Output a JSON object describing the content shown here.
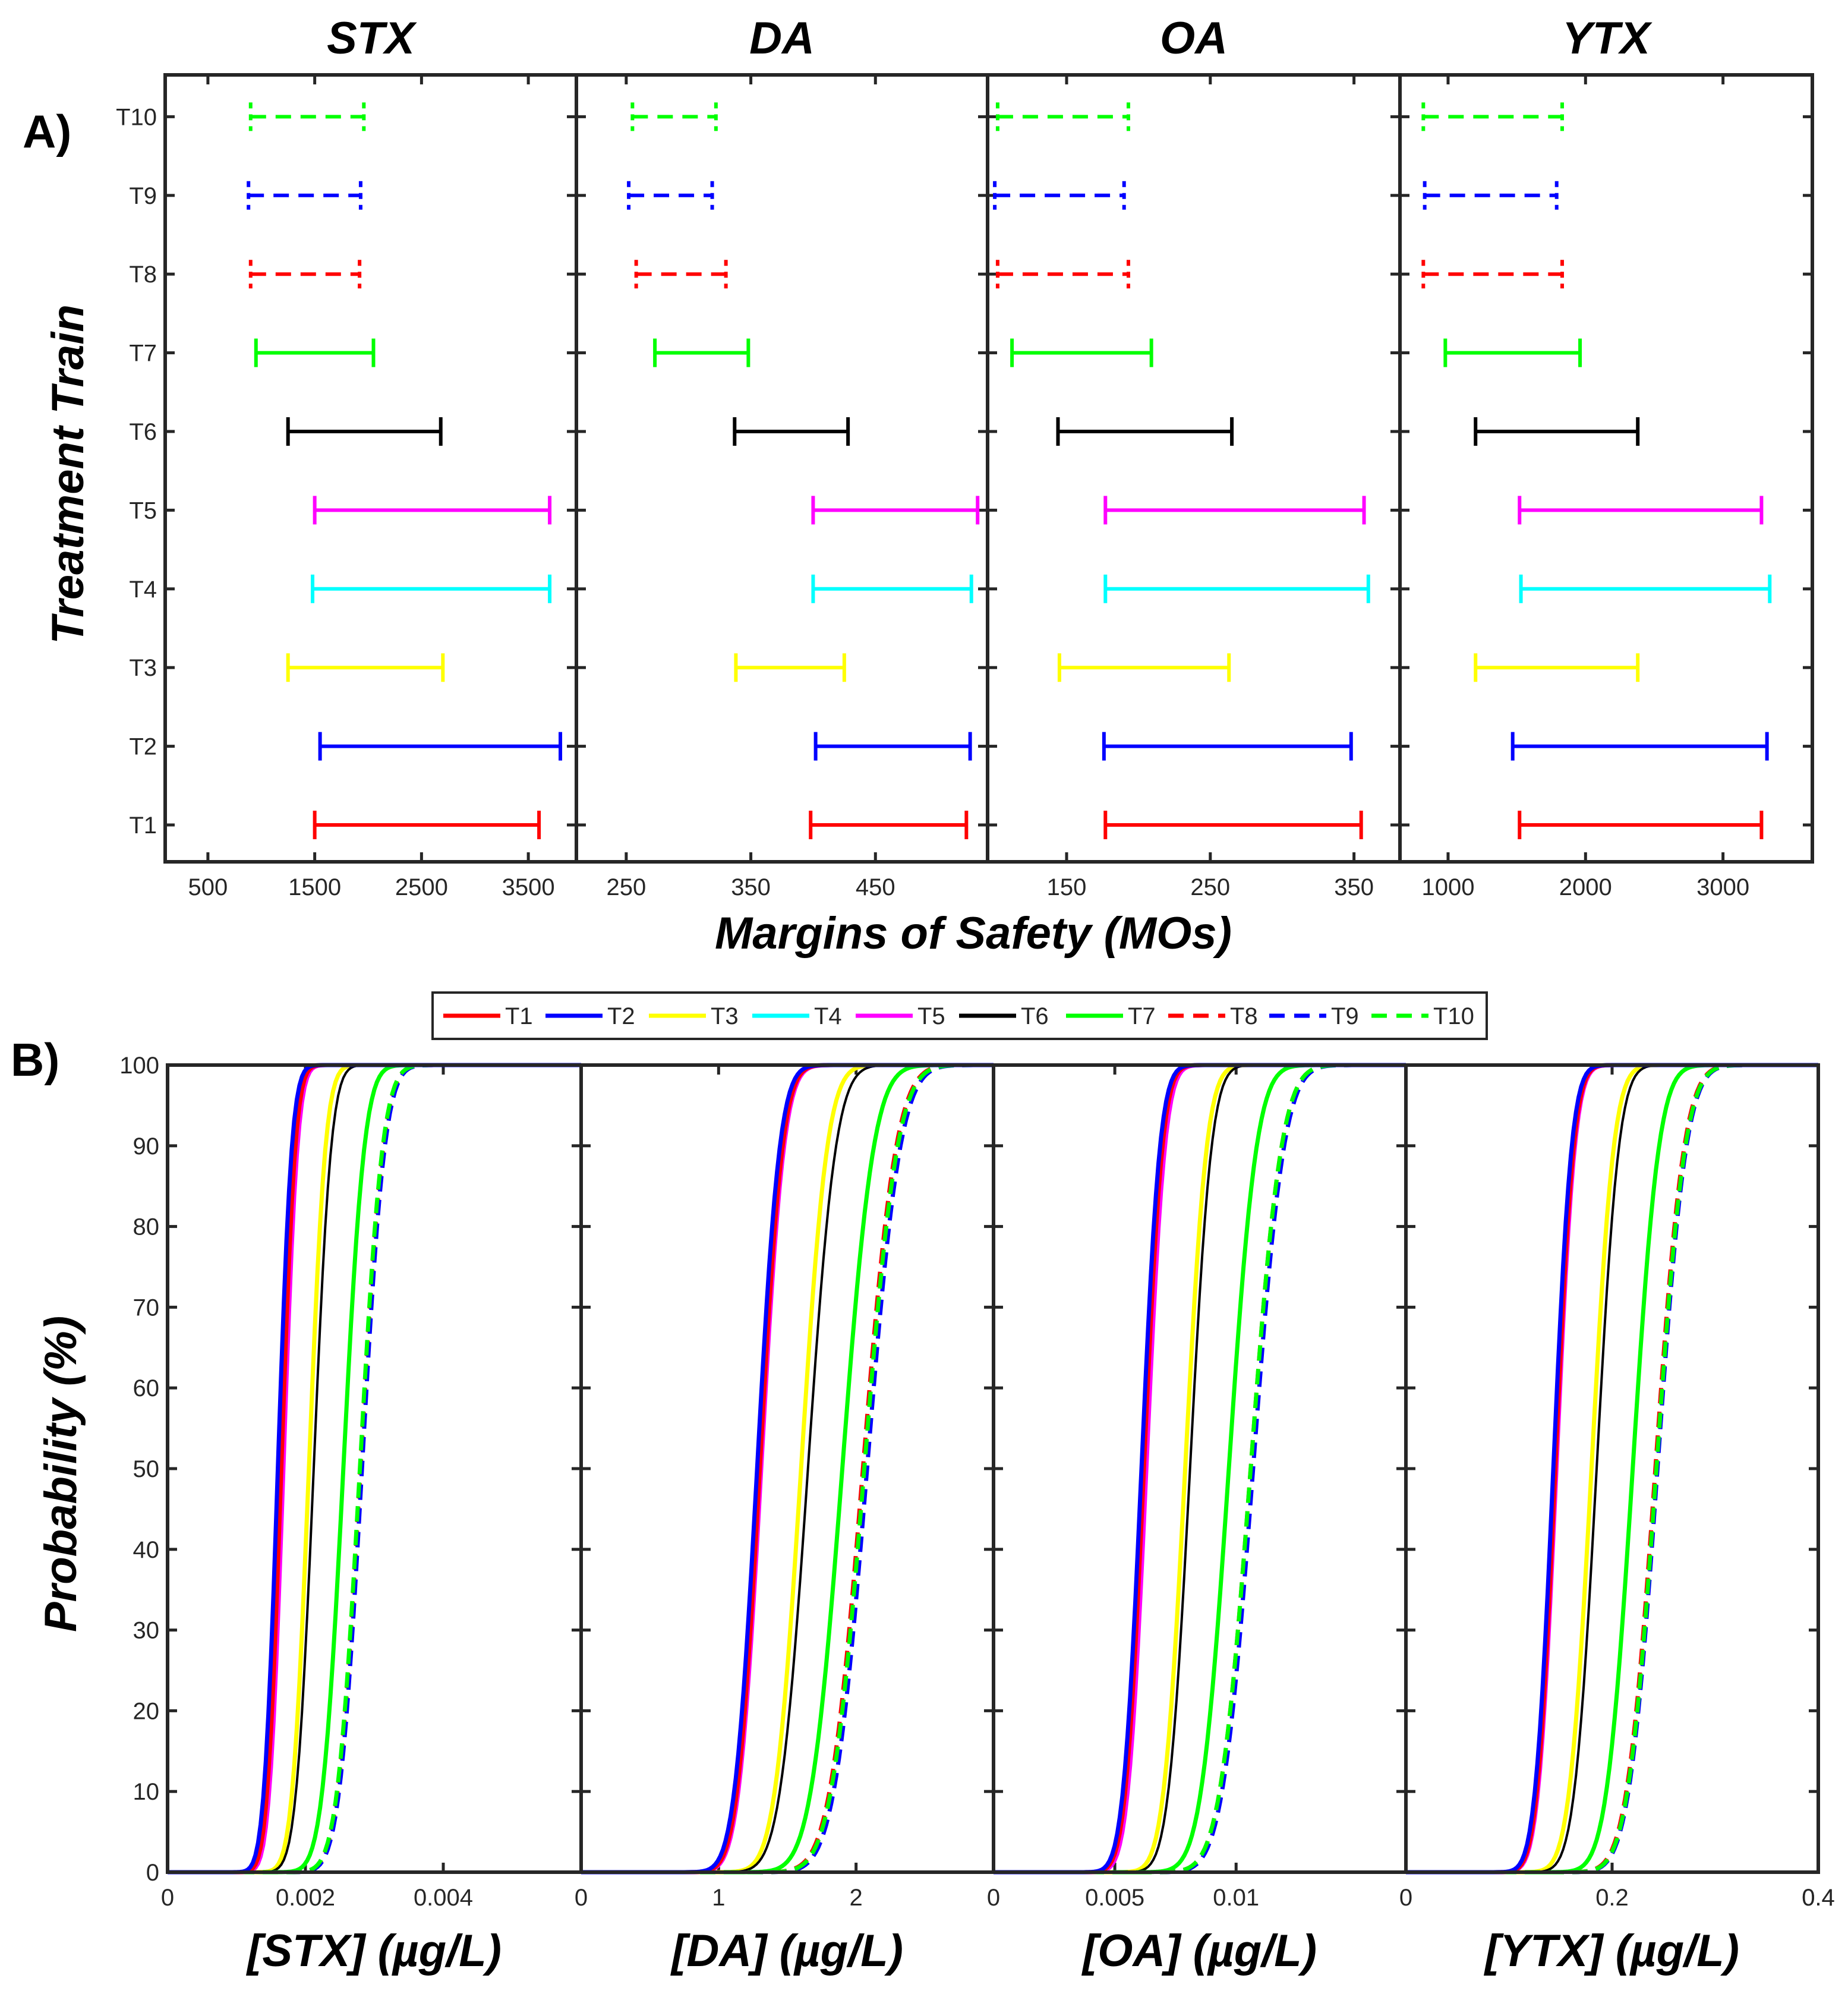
{
  "figure": {
    "panel_a_label": "A)",
    "panel_b_label": "B)",
    "panel_a_ylabel": "Treatment Train",
    "panel_a_xlabel": "Margins of Safety (MOs)",
    "panel_b_ylabel": "Probability (%)"
  },
  "colors": {
    "T1": "#ff0000",
    "T2": "#0000ff",
    "T3": "#ffff00",
    "T4": "#00ffff",
    "T5": "#ff00ff",
    "T6": "#000000",
    "T7": "#00ff00",
    "T8": "#ff0000",
    "T9": "#0000ff",
    "T10": "#00ff00"
  },
  "chart_data": [
    {
      "type": "interval",
      "panel": "A",
      "title": "STX",
      "xlabel": "Margins of Safety (MOs)",
      "ylabel": "Treatment Train",
      "xlim": [
        100,
        3950
      ],
      "xticks": [
        500,
        1500,
        2500,
        3500
      ],
      "tick_labels": [
        "500",
        "1500",
        "2500",
        "3500"
      ],
      "categories": [
        "T1",
        "T2",
        "T3",
        "T4",
        "T5",
        "T6",
        "T7",
        "T8",
        "T9",
        "T10"
      ],
      "low": [
        1500,
        1550,
        1250,
        1480,
        1500,
        1250,
        950,
        900,
        880,
        900
      ],
      "high": [
        3600,
        3800,
        2700,
        3700,
        3700,
        2680,
        2050,
        1920,
        1930,
        1960
      ],
      "dashed": [
        false,
        false,
        false,
        false,
        false,
        false,
        false,
        true,
        true,
        true
      ]
    },
    {
      "type": "interval",
      "panel": "A",
      "title": "DA",
      "xlim": [
        210,
        540
      ],
      "xticks": [
        250,
        350,
        450
      ],
      "tick_labels": [
        "250",
        "350",
        "450"
      ],
      "categories": [
        "T1",
        "T2",
        "T3",
        "T4",
        "T5",
        "T6",
        "T7",
        "T8",
        "T9",
        "T10"
      ],
      "low": [
        398,
        402,
        338,
        400,
        400,
        337,
        273,
        258,
        252,
        255
      ],
      "high": [
        523,
        526,
        425,
        527,
        532,
        428,
        348,
        330,
        319,
        322
      ],
      "dashed": [
        false,
        false,
        false,
        false,
        false,
        false,
        false,
        true,
        true,
        true
      ]
    },
    {
      "type": "interval",
      "panel": "A",
      "title": "OA",
      "xlim": [
        95,
        382
      ],
      "xticks": [
        150,
        250,
        350
      ],
      "tick_labels": [
        "150",
        "250",
        "350"
      ],
      "categories": [
        "T1",
        "T2",
        "T3",
        "T4",
        "T5",
        "T6",
        "T7",
        "T8",
        "T9",
        "T10"
      ],
      "low": [
        177,
        176,
        145,
        177,
        177,
        144,
        112,
        102,
        100,
        102
      ],
      "high": [
        355,
        348,
        263,
        360,
        357,
        265,
        209,
        193,
        190,
        193
      ],
      "dashed": [
        false,
        false,
        false,
        false,
        false,
        false,
        false,
        true,
        true,
        true
      ]
    },
    {
      "type": "interval",
      "panel": "A",
      "title": "YTX",
      "xlim": [
        650,
        3650
      ],
      "xticks": [
        1000,
        2000,
        3000
      ],
      "tick_labels": [
        "1000",
        "2000",
        "3000"
      ],
      "categories": [
        "T1",
        "T2",
        "T3",
        "T4",
        "T5",
        "T6",
        "T7",
        "T8",
        "T9",
        "T10"
      ],
      "low": [
        1520,
        1470,
        1200,
        1530,
        1520,
        1200,
        980,
        820,
        830,
        820
      ],
      "high": [
        3280,
        3320,
        2380,
        3340,
        3280,
        2380,
        1960,
        1830,
        1790,
        1830
      ],
      "dashed": [
        false,
        false,
        false,
        false,
        false,
        false,
        false,
        true,
        true,
        true
      ]
    },
    {
      "type": "line",
      "panel": "B",
      "xlabel": "[STX] (µg/L)",
      "ylabel": "Probability (%)",
      "xlim": [
        0,
        0.006
      ],
      "ylim": [
        0,
        100
      ],
      "xticks": [
        0,
        0.002,
        0.004
      ],
      "xtick_labels": [
        "0",
        "0.002",
        "0.004"
      ],
      "yticks": [
        0,
        10,
        20,
        30,
        40,
        50,
        60,
        70,
        80,
        90,
        100
      ],
      "ytick_labels": [
        "0",
        "10",
        "20",
        "30",
        "40",
        "50",
        "60",
        "70",
        "80",
        "90",
        "100"
      ],
      "series": [
        {
          "name": "T1",
          "median": 0.00165,
          "spread": 0.00016
        },
        {
          "name": "T2",
          "median": 0.0016,
          "spread": 0.00016
        },
        {
          "name": "T3",
          "median": 0.00205,
          "spread": 0.00019
        },
        {
          "name": "T4",
          "median": 0.00165,
          "spread": 0.00016
        },
        {
          "name": "T5",
          "median": 0.00168,
          "spread": 0.00016
        },
        {
          "name": "T6",
          "median": 0.00212,
          "spread": 0.0002
        },
        {
          "name": "T7",
          "median": 0.00255,
          "spread": 0.00024
        },
        {
          "name": "T8",
          "median": 0.0028,
          "spread": 0.00026
        },
        {
          "name": "T9",
          "median": 0.00282,
          "spread": 0.00026
        },
        {
          "name": "T10",
          "median": 0.00279,
          "spread": 0.00026
        }
      ]
    },
    {
      "type": "line",
      "panel": "B",
      "xlabel": "[DA] (µg/L)",
      "xlim": [
        0,
        3
      ],
      "ylim": [
        0,
        100
      ],
      "xticks": [
        0,
        1,
        2
      ],
      "xtick_labels": [
        "0",
        "1",
        "2"
      ],
      "series": [
        {
          "name": "T1",
          "median": 1.3,
          "spread": 0.13
        },
        {
          "name": "T2",
          "median": 1.28,
          "spread": 0.13
        },
        {
          "name": "T3",
          "median": 1.6,
          "spread": 0.15
        },
        {
          "name": "T4",
          "median": 1.3,
          "spread": 0.13
        },
        {
          "name": "T5",
          "median": 1.31,
          "spread": 0.13
        },
        {
          "name": "T6",
          "median": 1.65,
          "spread": 0.16
        },
        {
          "name": "T7",
          "median": 1.9,
          "spread": 0.18
        },
        {
          "name": "T8",
          "median": 2.05,
          "spread": 0.19
        },
        {
          "name": "T9",
          "median": 2.08,
          "spread": 0.19
        },
        {
          "name": "T10",
          "median": 2.06,
          "spread": 0.19
        }
      ]
    },
    {
      "type": "line",
      "panel": "B",
      "xlabel": "[OA] (µg/L)",
      "xlim": [
        0,
        0.017
      ],
      "ylim": [
        0,
        100
      ],
      "xticks": [
        0,
        0.005,
        0.01
      ],
      "xtick_labels": [
        "0",
        "0.005",
        "0.01"
      ],
      "series": [
        {
          "name": "T1",
          "median": 0.0062,
          "spread": 0.0006
        },
        {
          "name": "T2",
          "median": 0.0061,
          "spread": 0.0006
        },
        {
          "name": "T3",
          "median": 0.0079,
          "spread": 0.0007
        },
        {
          "name": "T4",
          "median": 0.0062,
          "spread": 0.0006
        },
        {
          "name": "T5",
          "median": 0.0063,
          "spread": 0.0006
        },
        {
          "name": "T6",
          "median": 0.0081,
          "spread": 0.0007
        },
        {
          "name": "T7",
          "median": 0.0097,
          "spread": 0.0009
        },
        {
          "name": "T8",
          "median": 0.0106,
          "spread": 0.001
        },
        {
          "name": "T9",
          "median": 0.0107,
          "spread": 0.001
        },
        {
          "name": "T10",
          "median": 0.0106,
          "spread": 0.001
        }
      ]
    },
    {
      "type": "line",
      "panel": "B",
      "xlabel": "[YTX] (µg/L)",
      "xlim": [
        0,
        0.4
      ],
      "ylim": [
        0,
        100
      ],
      "xticks": [
        0,
        0.2,
        0.4
      ],
      "xtick_labels": [
        "0",
        "0.2",
        "0.4"
      ],
      "series": [
        {
          "name": "T1",
          "median": 0.145,
          "spread": 0.014
        },
        {
          "name": "T2",
          "median": 0.143,
          "spread": 0.014
        },
        {
          "name": "T3",
          "median": 0.18,
          "spread": 0.017
        },
        {
          "name": "T4",
          "median": 0.145,
          "spread": 0.014
        },
        {
          "name": "T5",
          "median": 0.146,
          "spread": 0.014
        },
        {
          "name": "T6",
          "median": 0.185,
          "spread": 0.017
        },
        {
          "name": "T7",
          "median": 0.22,
          "spread": 0.02
        },
        {
          "name": "T8",
          "median": 0.242,
          "spread": 0.022
        },
        {
          "name": "T9",
          "median": 0.244,
          "spread": 0.022
        },
        {
          "name": "T10",
          "median": 0.243,
          "spread": 0.022
        }
      ]
    }
  ],
  "legend": {
    "entries": [
      "T1",
      "T2",
      "T3",
      "T4",
      "T5",
      "T6",
      "T7",
      "T8",
      "T9",
      "T10"
    ],
    "dashed": [
      false,
      false,
      false,
      false,
      false,
      false,
      false,
      true,
      true,
      true
    ]
  }
}
